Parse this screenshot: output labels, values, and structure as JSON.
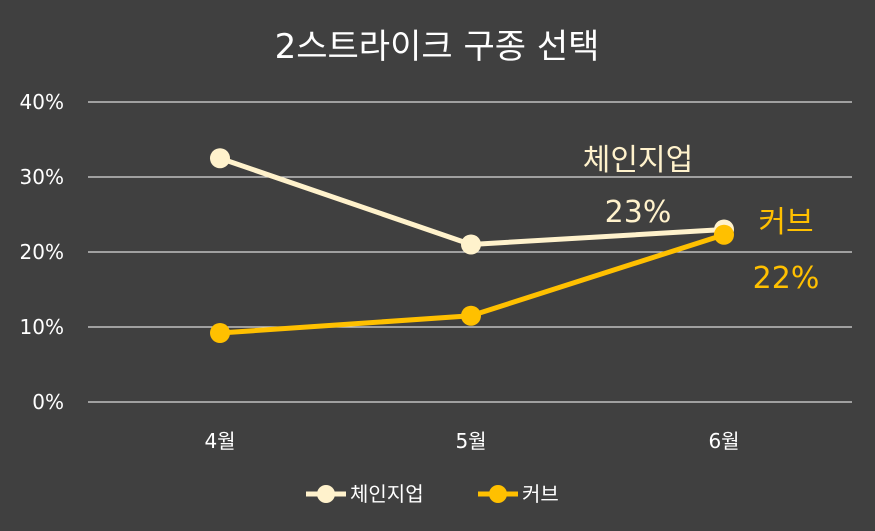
{
  "chart_data": {
    "type": "line",
    "title": "2스트라이크 구종 선택",
    "categories": [
      "4월",
      "5월",
      "6월"
    ],
    "yticks": [
      "0%",
      "10%",
      "20%",
      "30%",
      "40%"
    ],
    "ylim": [
      0,
      40
    ],
    "y_unit": "%",
    "grid": true,
    "legend_position": "bottom",
    "series": [
      {
        "name": "체인지업",
        "values": [
          32.5,
          21,
          23
        ],
        "color": "#FFF2CC",
        "end_label_value": "23%"
      },
      {
        "name": "커브",
        "values": [
          9.2,
          11.5,
          22.3
        ],
        "color": "#FFC000",
        "end_label_value": "22%"
      }
    ]
  }
}
